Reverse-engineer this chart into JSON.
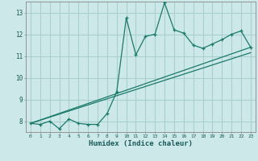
{
  "xlabel": "Humidex (Indice chaleur)",
  "bg_color": "#cce8e8",
  "grid_color": "#aacfcf",
  "line_color": "#1a7a6a",
  "xlim": [
    -0.5,
    23.5
  ],
  "ylim": [
    7.5,
    13.5
  ],
  "xticks": [
    0,
    1,
    2,
    3,
    4,
    5,
    6,
    7,
    8,
    9,
    10,
    11,
    12,
    13,
    14,
    15,
    16,
    17,
    18,
    19,
    20,
    21,
    22,
    23
  ],
  "yticks": [
    8,
    9,
    10,
    11,
    12,
    13
  ],
  "data_line": {
    "x": [
      0,
      1,
      2,
      3,
      4,
      5,
      6,
      7,
      8,
      9,
      10,
      11,
      12,
      13,
      14,
      15,
      16,
      17,
      18,
      19,
      20,
      21,
      22,
      23
    ],
    "y": [
      7.9,
      7.85,
      8.0,
      7.65,
      8.1,
      7.9,
      7.85,
      7.85,
      8.35,
      9.35,
      12.75,
      11.05,
      11.9,
      12.0,
      13.45,
      12.2,
      12.05,
      11.5,
      11.35,
      11.55,
      11.75,
      12.0,
      12.15,
      11.4
    ]
  },
  "trend_line1": {
    "x": [
      0,
      23
    ],
    "y": [
      7.9,
      11.4
    ]
  },
  "trend_line2": {
    "x": [
      0,
      23
    ],
    "y": [
      7.9,
      11.15
    ]
  }
}
